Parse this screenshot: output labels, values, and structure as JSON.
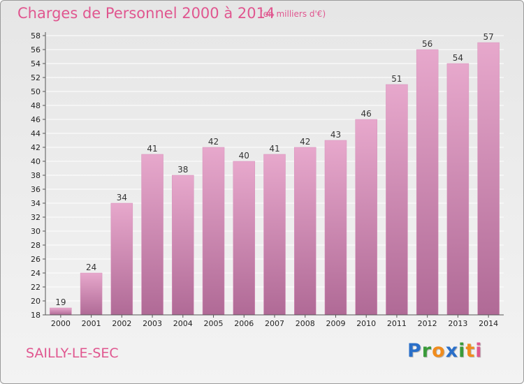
{
  "title": "Charges de Personnel 2000 à 2014",
  "unit_note": "(en milliers d'€)",
  "commune": "SAILLY-LE-SEC",
  "logo": {
    "text": "Proxiti",
    "letters": [
      {
        "ch": "P",
        "color": "#2a6fc9"
      },
      {
        "ch": "r",
        "color": "#3a9b3a"
      },
      {
        "ch": "o",
        "color": "#f08c1e"
      },
      {
        "ch": "x",
        "color": "#2a6fc9"
      },
      {
        "ch": "i",
        "color": "#3a9b3a"
      },
      {
        "ch": "t",
        "color": "#f08c1e"
      },
      {
        "ch": "i",
        "color": "#e0568f"
      }
    ]
  },
  "colors": {
    "accent": "#e0568f",
    "bar_top": "#e7a8cc",
    "bar_bottom": "#b06a96",
    "grid": "#ffffff"
  },
  "chart_data": {
    "type": "bar",
    "categories": [
      "2000",
      "2001",
      "2002",
      "2003",
      "2004",
      "2005",
      "2006",
      "2007",
      "2008",
      "2009",
      "2010",
      "2011",
      "2012",
      "2013",
      "2014"
    ],
    "values": [
      19,
      24,
      34,
      41,
      38,
      42,
      40,
      41,
      42,
      43,
      46,
      51,
      56,
      54,
      57
    ],
    "ylim": [
      18,
      58
    ],
    "ytick_step": 2,
    "grid": true
  }
}
